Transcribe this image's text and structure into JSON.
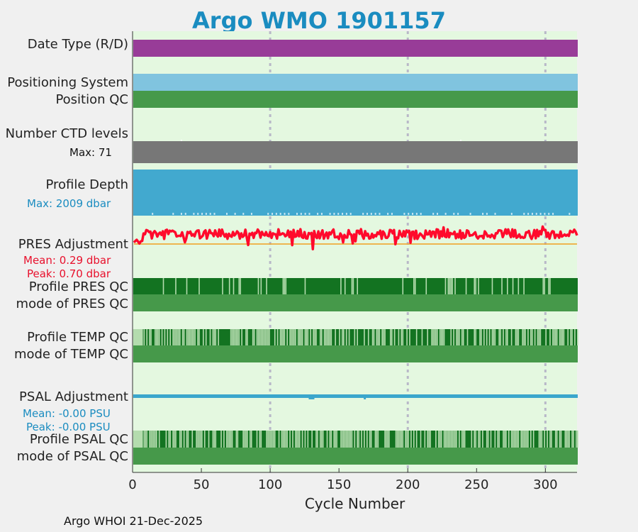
{
  "title": "Argo WMO 1901157",
  "footer": "Argo WHOI 21-Dec-2025",
  "labels": {
    "date_type": "Date Type (R/D)",
    "positioning_system": "Positioning System",
    "position_qc": "Position QC",
    "number_ctd_levels": "Number CTD levels",
    "ctd_max": "Max: 71",
    "profile_depth": "Profile Depth",
    "depth_max": "Max: 2009 dbar",
    "pres_adjustment": "PRES Adjustment",
    "pres_mean": "Mean: 0.29 dbar",
    "pres_peak": "Peak: 0.70 dbar",
    "profile_pres_qc": "Profile PRES QC",
    "mode_pres_qc": "mode of PRES QC",
    "profile_temp_qc": "Profile TEMP QC",
    "mode_temp_qc": "mode of TEMP QC",
    "psal_adjustment": "PSAL Adjustment",
    "psal_mean": "Mean: -0.00 PSU",
    "psal_peak": "Peak: -0.00 PSU",
    "profile_psal_qc": "Profile PSAL QC",
    "mode_psal_qc": "mode of PSAL QC"
  },
  "colors": {
    "title": "#1a8cc0",
    "plot_bg": "#e4f8e0",
    "date_type": "#983c98",
    "positioning": "#80c4df",
    "qc_green": "#46994a",
    "ctd_gray": "#777777",
    "depth_blue": "#42a9cf",
    "pres_line": "#ff0a2c",
    "pres_mean_line": "#f0a020",
    "profile_qc_dark": "#137321",
    "profile_qc_light": "#b4dcae",
    "psal_line": "#3aa6cc",
    "pres_text": "#e8102c",
    "psal_text": "#1a8cc0"
  },
  "chart_data": {
    "type": "bar",
    "title": "Argo WMO 1901157",
    "xlabel": "Cycle Number",
    "xlim": [
      0,
      323
    ],
    "xticks": [
      0,
      50,
      100,
      150,
      200,
      250,
      300
    ],
    "grid_x": [
      100,
      200,
      300
    ],
    "n_cycles": 323,
    "rows": [
      {
        "name": "Date Type (R/D)",
        "value": "D",
        "cycles": [
          1,
          323
        ]
      },
      {
        "name": "Positioning System",
        "cycles": [
          1,
          323
        ]
      },
      {
        "name": "Position QC",
        "value": 1,
        "cycles": [
          1,
          323
        ]
      },
      {
        "name": "Number CTD levels",
        "max": 71
      },
      {
        "name": "Profile Depth",
        "max": 2009,
        "units": "dbar"
      },
      {
        "name": "PRES Adjustment",
        "mean": 0.29,
        "peak": 0.7,
        "units": "dbar"
      },
      {
        "name": "Profile PRES QC",
        "mode": 1
      },
      {
        "name": "Profile TEMP QC",
        "mode": 1
      },
      {
        "name": "PSAL Adjustment",
        "mean": -0.0,
        "peak": -0.0,
        "units": "PSU"
      },
      {
        "name": "Profile PSAL QC",
        "mode": 1
      }
    ]
  }
}
